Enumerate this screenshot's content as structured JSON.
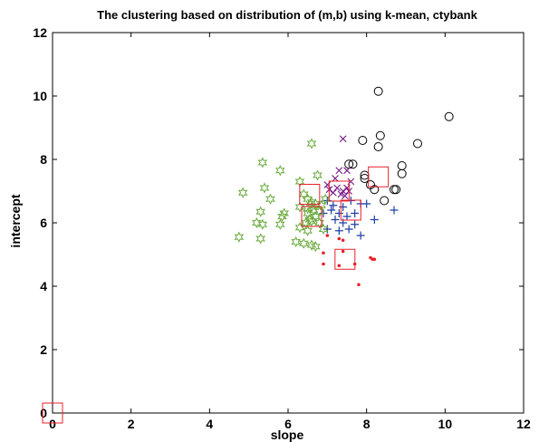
{
  "chart_data": {
    "type": "scatter",
    "title": "The clustering based on distribution of (m,b) using k-mean, ctybank",
    "xlabel": "slope",
    "ylabel": "intercept",
    "xlim": [
      0,
      12
    ],
    "ylim": [
      0,
      12
    ],
    "xticks": [
      "0",
      "2",
      "4",
      "6",
      "8",
      "10",
      "12"
    ],
    "yticks": [
      "0",
      "2",
      "4",
      "6",
      "8",
      "10",
      "12"
    ],
    "grid": false,
    "legend": "none",
    "series": [
      {
        "marker": "circle",
        "color": "#000000",
        "points": [
          [
            8.3,
            10.15
          ],
          [
            10.1,
            9.35
          ],
          [
            8.35,
            8.75
          ],
          [
            9.3,
            8.5
          ],
          [
            7.9,
            8.6
          ],
          [
            8.3,
            8.4
          ],
          [
            7.55,
            7.85
          ],
          [
            7.65,
            7.85
          ],
          [
            8.9,
            7.8
          ],
          [
            7.95,
            7.5
          ],
          [
            7.95,
            7.4
          ],
          [
            8.9,
            7.55
          ],
          [
            8.1,
            7.2
          ],
          [
            8.2,
            7.05
          ],
          [
            8.7,
            7.05
          ],
          [
            8.75,
            7.05
          ],
          [
            8.45,
            6.7
          ]
        ]
      },
      {
        "marker": "x",
        "color": "#7a1f8a",
        "points": [
          [
            7.4,
            8.65
          ],
          [
            7.3,
            7.65
          ],
          [
            7.5,
            7.65
          ],
          [
            7.2,
            7.4
          ],
          [
            7.6,
            7.3
          ],
          [
            7.0,
            7.2
          ],
          [
            7.25,
            7.1
          ],
          [
            7.4,
            7.0
          ],
          [
            7.5,
            7.1
          ],
          [
            7.35,
            6.9
          ],
          [
            7.15,
            6.95
          ],
          [
            7.05,
            7.05
          ],
          [
            7.45,
            6.85
          ],
          [
            7.55,
            7.0
          ]
        ]
      },
      {
        "marker": "plus",
        "color": "#1f3fa6",
        "points": [
          [
            8.7,
            6.4
          ],
          [
            8.0,
            6.6
          ],
          [
            8.2,
            6.1
          ],
          [
            7.85,
            6.6
          ],
          [
            7.7,
            6.3
          ],
          [
            7.6,
            6.7
          ],
          [
            7.5,
            6.2
          ],
          [
            7.4,
            6.5
          ],
          [
            7.3,
            6.3
          ],
          [
            7.2,
            6.1
          ],
          [
            7.1,
            6.4
          ],
          [
            7.0,
            6.7
          ],
          [
            6.9,
            6.3
          ],
          [
            7.0,
            5.8
          ],
          [
            7.3,
            5.75
          ],
          [
            7.55,
            5.8
          ],
          [
            7.7,
            5.95
          ],
          [
            7.85,
            5.6
          ],
          [
            7.4,
            6.0
          ],
          [
            7.15,
            6.55
          ]
        ]
      },
      {
        "marker": "dot",
        "color": "#e8202a",
        "points": [
          [
            7.0,
            5.6
          ],
          [
            7.3,
            5.5
          ],
          [
            7.4,
            5.45
          ],
          [
            6.9,
            5.05
          ],
          [
            7.4,
            5.1
          ],
          [
            6.9,
            4.7
          ],
          [
            7.7,
            4.7
          ],
          [
            8.1,
            4.9
          ],
          [
            8.15,
            4.85
          ],
          [
            8.2,
            4.85
          ],
          [
            7.8,
            4.05
          ],
          [
            7.3,
            4.65
          ]
        ]
      },
      {
        "marker": "star",
        "color": "#6aaa3c",
        "points": [
          [
            6.6,
            8.5
          ],
          [
            5.35,
            7.9
          ],
          [
            5.8,
            7.65
          ],
          [
            6.75,
            7.5
          ],
          [
            5.4,
            7.1
          ],
          [
            6.3,
            7.3
          ],
          [
            4.85,
            6.95
          ],
          [
            5.55,
            6.75
          ],
          [
            6.4,
            6.9
          ],
          [
            6.5,
            6.75
          ],
          [
            6.6,
            6.65
          ],
          [
            6.7,
            6.6
          ],
          [
            6.95,
            6.75
          ],
          [
            6.5,
            6.45
          ],
          [
            6.3,
            6.5
          ],
          [
            5.9,
            6.3
          ],
          [
            5.85,
            6.2
          ],
          [
            5.3,
            6.35
          ],
          [
            5.2,
            6.0
          ],
          [
            5.35,
            5.95
          ],
          [
            5.8,
            5.95
          ],
          [
            6.45,
            6.0
          ],
          [
            6.6,
            6.05
          ],
          [
            6.7,
            6.2
          ],
          [
            6.8,
            6.35
          ],
          [
            6.55,
            6.1
          ],
          [
            6.8,
            6.0
          ],
          [
            6.3,
            5.85
          ],
          [
            6.5,
            5.75
          ],
          [
            6.9,
            5.8
          ],
          [
            4.75,
            5.55
          ],
          [
            5.3,
            5.5
          ],
          [
            6.2,
            5.4
          ],
          [
            6.4,
            5.35
          ],
          [
            6.6,
            5.3
          ],
          [
            6.7,
            5.25
          ],
          [
            6.5,
            6.3
          ],
          [
            6.65,
            6.4
          ],
          [
            6.85,
            6.55
          ],
          [
            6.6,
            6.5
          ]
        ]
      }
    ],
    "centroids": {
      "marker": "square",
      "color": "#e8202a",
      "points": [
        [
          0.0,
          0.0
        ],
        [
          8.3,
          7.45
        ],
        [
          6.55,
          6.9
        ],
        [
          7.3,
          7.0
        ],
        [
          7.6,
          6.4
        ],
        [
          6.6,
          6.2
        ],
        [
          7.45,
          4.85
        ]
      ]
    }
  }
}
